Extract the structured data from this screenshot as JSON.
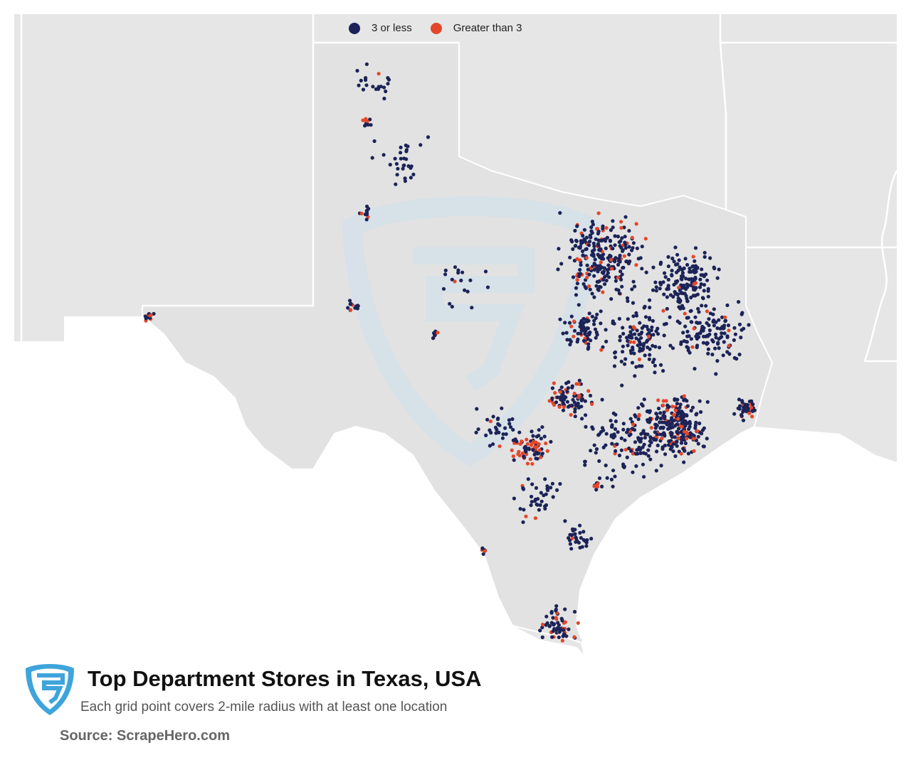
{
  "legend": {
    "items": [
      {
        "label": "3 or less",
        "color": "#1b2357"
      },
      {
        "label": "Greater than 3",
        "color": "#e4472a"
      }
    ]
  },
  "title": "Top Department Stores in Texas, USA",
  "subtitle": "Each grid point covers 2-mile radius with at least one location",
  "source": "Source: ScrapeHero.com",
  "colors": {
    "low": "#1b2357",
    "high": "#e4472a",
    "land": "#e6e6e6",
    "water": "#ffffff",
    "border": "#ffffff",
    "watermark": "#d6e1ea",
    "logo": "#3ea4db"
  },
  "icons": {
    "logo": "scrapehero-shield-logo-icon",
    "watermark": "scrapehero-watermark-icon"
  }
}
